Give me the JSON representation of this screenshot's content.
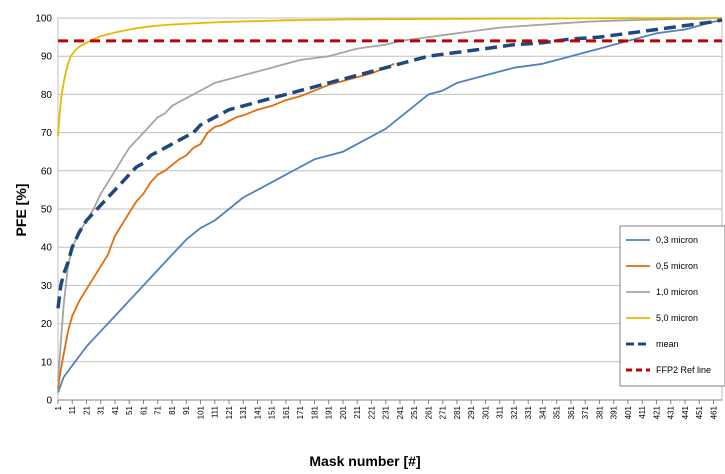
{
  "chart_data": {
    "type": "line",
    "xlabel": "Mask number [#]",
    "ylabel": "PFE [%]",
    "ylim": [
      0,
      100
    ],
    "yticks": [
      0,
      10,
      20,
      30,
      40,
      50,
      60,
      70,
      80,
      90,
      100
    ],
    "xlim": [
      1,
      467
    ],
    "xticks": [
      1,
      11,
      21,
      31,
      41,
      51,
      61,
      71,
      81,
      91,
      101,
      111,
      121,
      131,
      141,
      151,
      161,
      171,
      181,
      191,
      201,
      211,
      221,
      231,
      241,
      251,
      261,
      271,
      281,
      291,
      301,
      311,
      321,
      331,
      341,
      351,
      361,
      371,
      381,
      391,
      401,
      411,
      421,
      431,
      441,
      451,
      461
    ],
    "grid": "horizontal",
    "legend_position": "right",
    "series": [
      {
        "name": "0,3 micron",
        "color": "#4f81bd",
        "style": "solid",
        "x": [
          1,
          5,
          11,
          21,
          31,
          41,
          51,
          61,
          71,
          81,
          91,
          101,
          111,
          121,
          131,
          141,
          151,
          161,
          171,
          181,
          191,
          201,
          211,
          221,
          231,
          241,
          251,
          261,
          271,
          281,
          291,
          301,
          311,
          321,
          331,
          341,
          351,
          361,
          371,
          381,
          391,
          401,
          411,
          421,
          431,
          441,
          451,
          461,
          467
        ],
        "values": [
          2,
          6,
          9,
          14,
          18,
          22,
          26,
          30,
          34,
          38,
          42,
          45,
          47,
          50,
          53,
          55,
          57,
          59,
          61,
          63,
          64,
          65,
          67,
          69,
          71,
          74,
          77,
          80,
          81,
          83,
          84,
          85,
          86,
          87,
          87.5,
          88,
          89,
          90,
          91,
          92,
          93,
          94,
          95,
          96,
          96.5,
          97,
          98,
          99,
          99.5
        ]
      },
      {
        "name": "0,5 micron",
        "color": "#e36c0a",
        "style": "solid",
        "x": [
          1,
          3,
          5,
          8,
          11,
          16,
          21,
          26,
          31,
          36,
          41,
          46,
          51,
          56,
          61,
          66,
          71,
          76,
          81,
          86,
          91,
          96,
          101,
          106,
          111,
          116,
          121,
          126,
          131,
          141,
          151,
          161,
          171,
          181,
          191,
          201,
          211,
          221,
          231,
          237
        ],
        "values": [
          3,
          8,
          12,
          18,
          22,
          26,
          29,
          32,
          35,
          38,
          43,
          46,
          49,
          52,
          54,
          57,
          59,
          60,
          61.5,
          63,
          64,
          66,
          67,
          70,
          71.5,
          72,
          73,
          74,
          74.5,
          76,
          77,
          78.5,
          79.5,
          81,
          82.5,
          83.5,
          84.5,
          85.5,
          87,
          88
        ]
      },
      {
        "name": "1,0 micron",
        "color": "#a5a5a5",
        "style": "solid",
        "x": [
          1,
          3,
          5,
          8,
          11,
          16,
          21,
          26,
          31,
          36,
          41,
          46,
          51,
          56,
          61,
          66,
          71,
          76,
          81,
          86,
          91,
          96,
          101,
          106,
          111,
          121,
          131,
          141,
          151,
          161,
          171,
          181,
          191,
          201,
          211,
          221,
          231,
          241,
          251,
          261,
          271,
          281,
          291,
          301,
          311,
          331,
          351,
          371,
          391,
          411,
          431,
          451,
          467
        ],
        "values": [
          5,
          15,
          25,
          35,
          40,
          44,
          47,
          50,
          54,
          57,
          60,
          63,
          66,
          68,
          70,
          72,
          74,
          75,
          77,
          78,
          79,
          80,
          81,
          82,
          83,
          84,
          85,
          86,
          87,
          88,
          89,
          89.5,
          90,
          91,
          92,
          92.5,
          93,
          94,
          94.5,
          95,
          95.5,
          96,
          96.5,
          97,
          97.5,
          98,
          98.5,
          99,
          99.3,
          99.5,
          99.7,
          99.8,
          100
        ]
      },
      {
        "name": "5,0 micron",
        "color": "#e6b800",
        "style": "solid",
        "x": [
          1,
          2,
          3,
          4,
          5,
          6,
          8,
          10,
          13,
          16,
          21,
          26,
          31,
          41,
          51,
          61,
          71,
          81,
          101,
          121,
          141,
          161,
          181,
          201,
          241,
          281,
          321,
          361,
          401,
          441,
          467
        ],
        "values": [
          69,
          74,
          78,
          81,
          83,
          85,
          88,
          90,
          91.5,
          92.5,
          93.5,
          94.5,
          95.2,
          96.2,
          97,
          97.6,
          98,
          98.3,
          98.7,
          99,
          99.2,
          99.4,
          99.5,
          99.6,
          99.7,
          99.8,
          99.85,
          99.9,
          99.95,
          99.98,
          100
        ]
      },
      {
        "name": "mean",
        "color": "#1f497d",
        "style": "dash",
        "x": [
          1,
          3,
          5,
          8,
          11,
          16,
          21,
          26,
          31,
          36,
          41,
          46,
          51,
          56,
          61,
          66,
          71,
          76,
          81,
          86,
          91,
          96,
          101,
          111,
          121,
          131,
          141,
          151,
          161,
          171,
          181,
          191,
          201,
          211,
          221,
          231,
          241,
          251,
          261,
          271,
          281,
          291,
          301,
          321,
          341,
          361,
          381,
          401,
          421,
          441,
          461,
          467
        ],
        "values": [
          24,
          30,
          33,
          36,
          40,
          44,
          47,
          49,
          51,
          53,
          55,
          57,
          59,
          61,
          62,
          64,
          65,
          66,
          67,
          68,
          69,
          70,
          72,
          74,
          76,
          77,
          78,
          79,
          80,
          81,
          82,
          83,
          84,
          85,
          86,
          87,
          88,
          89,
          90,
          90.5,
          91,
          91.5,
          92,
          93,
          93.5,
          94.5,
          95,
          96,
          97,
          98,
          99,
          99.5
        ]
      },
      {
        "name": "FFP2 Ref line",
        "color": "#c00000",
        "style": "dash",
        "x": [
          1,
          467
        ],
        "values": [
          94,
          94
        ]
      }
    ]
  }
}
